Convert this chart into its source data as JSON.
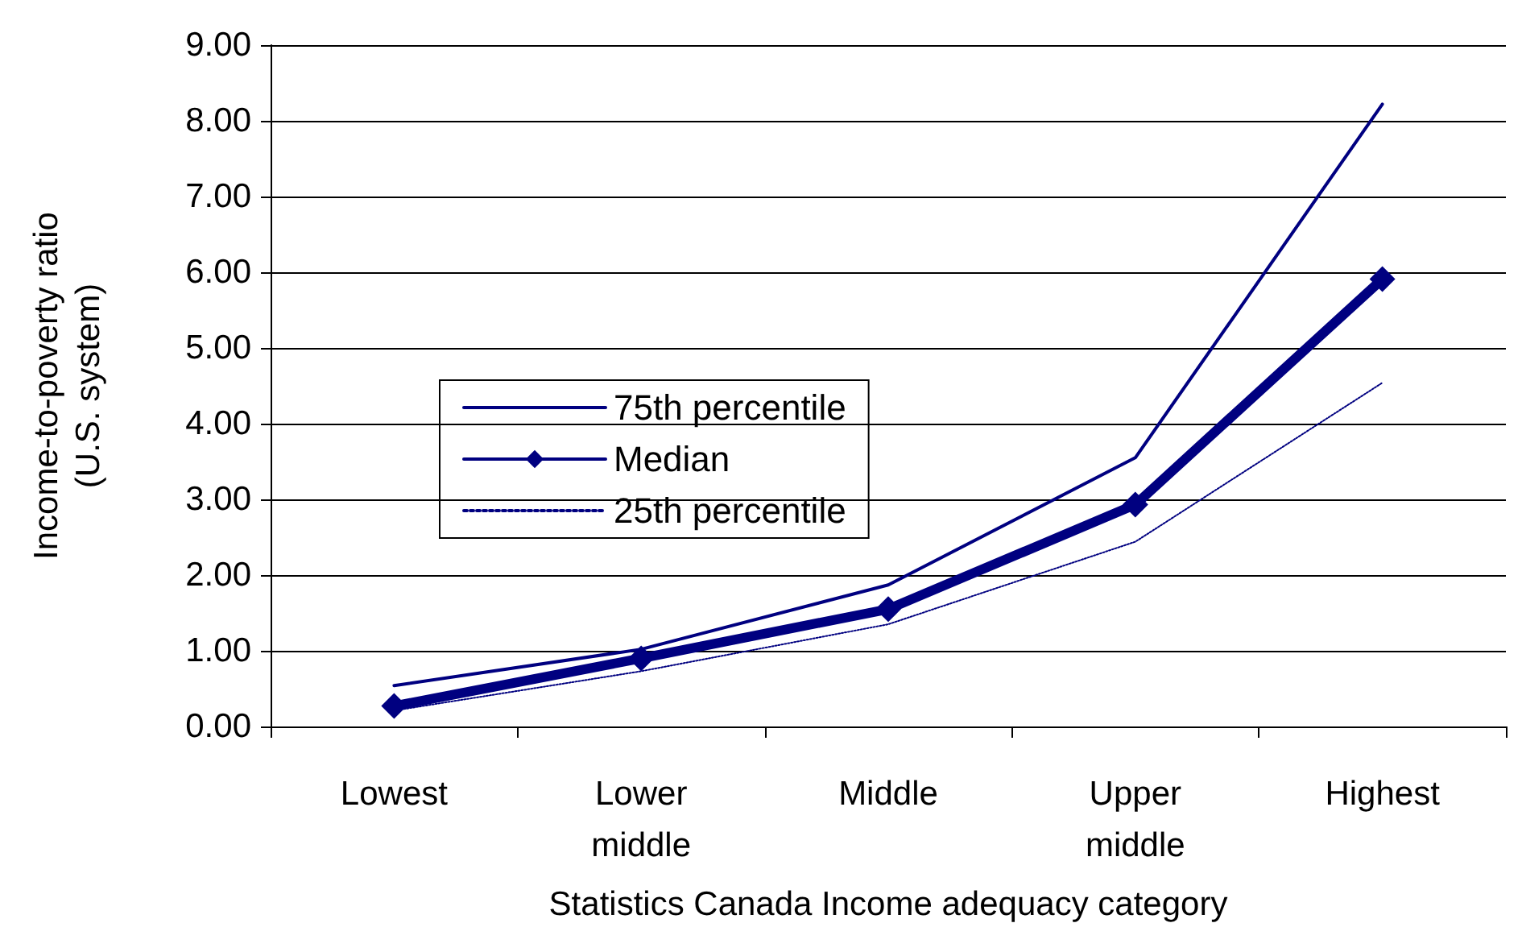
{
  "chart_data": {
    "type": "line",
    "xlabel": "Statistics Canada Income adequacy category",
    "ylabel": "Income-to-poverty ratio\n(U.S. system)",
    "categories": [
      "Lowest",
      "Lower\nmiddle",
      "Middle",
      "Upper\nmiddle",
      "Highest"
    ],
    "series": [
      {
        "name": "75th percentile",
        "color": "#000080",
        "line_style": "solid",
        "marker": "none",
        "values": [
          0.54,
          1.02,
          1.87,
          3.55,
          8.22
        ]
      },
      {
        "name": "Median",
        "color": "#000080",
        "line_style": "solid",
        "marker": "diamond",
        "values": [
          0.27,
          0.9,
          1.55,
          2.93,
          5.91
        ]
      },
      {
        "name": "25th percentile",
        "color": "#000080",
        "line_style": "dotted",
        "marker": "none",
        "values": [
          0.21,
          0.73,
          1.35,
          2.44,
          4.54
        ]
      }
    ],
    "ylim": [
      0,
      9
    ],
    "yticks": [
      {
        "value": 0,
        "label": "0.00"
      },
      {
        "value": 1,
        "label": "1.00"
      },
      {
        "value": 2,
        "label": "2.00"
      },
      {
        "value": 3,
        "label": "3.00"
      },
      {
        "value": 4,
        "label": "4.00"
      },
      {
        "value": 5,
        "label": "5.00"
      },
      {
        "value": 6,
        "label": "6.00"
      },
      {
        "value": 7,
        "label": "7.00"
      },
      {
        "value": 8,
        "label": "8.00"
      },
      {
        "value": 9,
        "label": "9.00"
      }
    ],
    "grid": "y",
    "legend": "center"
  }
}
